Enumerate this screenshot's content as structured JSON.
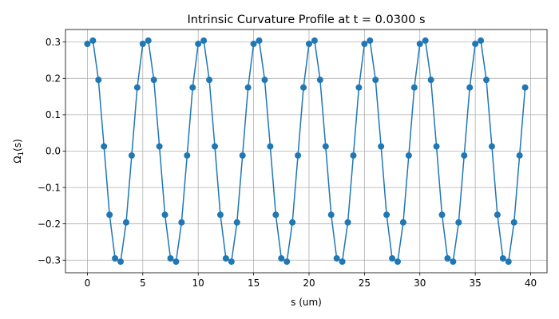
{
  "chart_data": {
    "type": "line",
    "title": "Intrinsic Curvature Profile at t = 0.0300 s",
    "xlabel": "s (um)",
    "ylabel_main": "Ω",
    "ylabel_sub": "1",
    "ylabel_suffix": "(s)",
    "xlim": [
      -1.975,
      41.475
    ],
    "ylim": [
      -0.3345,
      0.3345
    ],
    "grid": true,
    "xticks": [
      0,
      5,
      10,
      15,
      20,
      25,
      30,
      35,
      40
    ],
    "xtick_labels": [
      "0",
      "5",
      "10",
      "15",
      "20",
      "25",
      "30",
      "35",
      "40"
    ],
    "yticks": [
      -0.3,
      -0.2,
      -0.1,
      0.0,
      0.1,
      0.2,
      0.3
    ],
    "ytick_labels": [
      "−0.3",
      "−0.2",
      "−0.1",
      "0.0",
      "0.1",
      "0.2",
      "0.3"
    ],
    "series": [
      {
        "color": "#1f77b4",
        "x": [
          0,
          0.5,
          1,
          1.5,
          2,
          2.5,
          3,
          3.5,
          4,
          4.5,
          5,
          5.5,
          6,
          6.5,
          7,
          7.5,
          8,
          8.5,
          9,
          9.5,
          10,
          10.5,
          11,
          11.5,
          12,
          12.5,
          13,
          13.5,
          14,
          14.5,
          15,
          15.5,
          16,
          16.5,
          17,
          17.5,
          18,
          18.5,
          19,
          19.5,
          20,
          20.5,
          21,
          21.5,
          22,
          22.5,
          23,
          23.5,
          24,
          24.5,
          25,
          25.5,
          26,
          26.5,
          27,
          27.5,
          28,
          28.5,
          29,
          29.5,
          30,
          30.5,
          31,
          31.5,
          32,
          32.5,
          33,
          33.5,
          34,
          34.5,
          35,
          35.5,
          36,
          36.5,
          37,
          37.5,
          38,
          38.5,
          39,
          39.5
        ],
        "y": [
          0.295,
          0.304,
          0.196,
          0.013,
          -0.175,
          -0.295,
          -0.304,
          -0.196,
          -0.012,
          0.175,
          0.295,
          0.304,
          0.196,
          0.013,
          -0.175,
          -0.295,
          -0.304,
          -0.196,
          -0.012,
          0.175,
          0.295,
          0.304,
          0.196,
          0.013,
          -0.175,
          -0.295,
          -0.304,
          -0.196,
          -0.012,
          0.175,
          0.295,
          0.304,
          0.196,
          0.013,
          -0.175,
          -0.295,
          -0.304,
          -0.196,
          -0.012,
          0.175,
          0.295,
          0.304,
          0.196,
          0.013,
          -0.175,
          -0.295,
          -0.304,
          -0.196,
          -0.012,
          0.175,
          0.295,
          0.304,
          0.196,
          0.013,
          -0.175,
          -0.295,
          -0.304,
          -0.196,
          -0.012,
          0.175,
          0.295,
          0.304,
          0.196,
          0.013,
          -0.175,
          -0.295,
          -0.304,
          -0.196,
          -0.012,
          0.175,
          0.295,
          0.304,
          0.196,
          0.013,
          -0.175,
          -0.295,
          -0.304,
          -0.196,
          -0.012,
          0.175
        ]
      }
    ]
  }
}
